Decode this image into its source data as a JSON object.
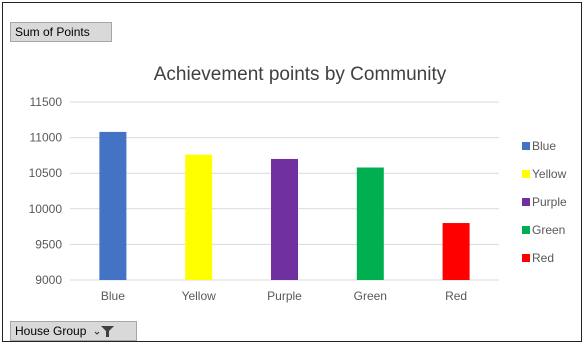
{
  "pivot": {
    "value_field": "Sum of Points",
    "axis_field": "House Group"
  },
  "chart_data": {
    "type": "bar",
    "title": "Achievement points by Community",
    "xlabel": "",
    "ylabel": "",
    "categories": [
      "Blue",
      "Yellow",
      "Purple",
      "Green",
      "Red"
    ],
    "values": [
      11080,
      10760,
      10700,
      10580,
      9800
    ],
    "colors": [
      "#4472c4",
      "#ffff00",
      "#7030a0",
      "#00b050",
      "#ff0000"
    ],
    "ylim": [
      9000,
      11500
    ],
    "yticks": [
      9000,
      9500,
      10000,
      10500,
      11000,
      11500
    ],
    "grid": true,
    "legend": {
      "placement": "right",
      "entries": [
        "Blue",
        "Yellow",
        "Purple",
        "Green",
        "Red"
      ]
    }
  },
  "icons": {
    "filter": "funnel-filter-icon"
  }
}
